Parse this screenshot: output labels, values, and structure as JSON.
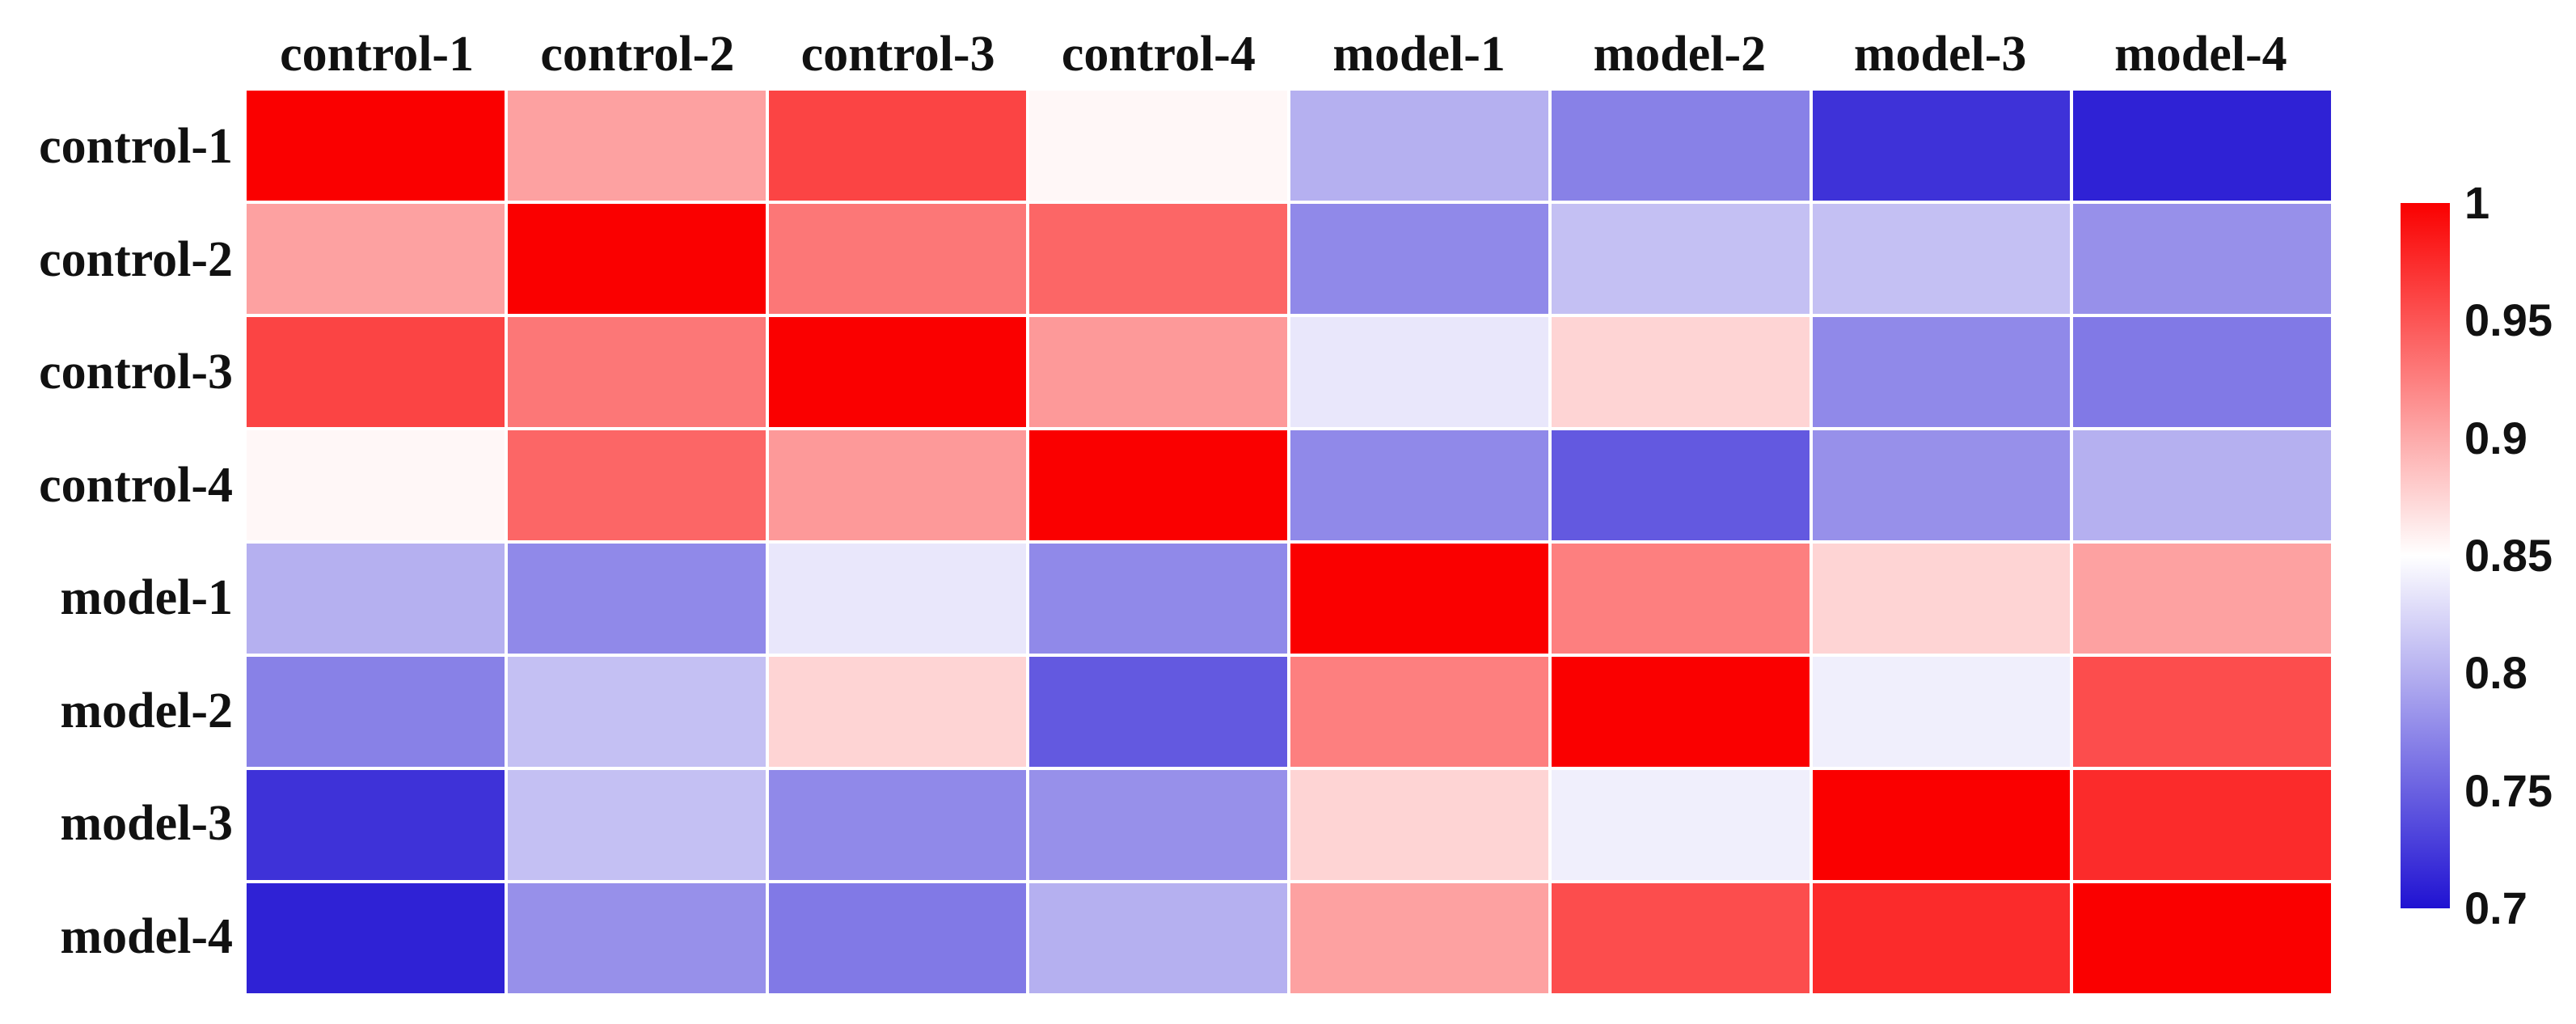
{
  "figure": {
    "background": "#ffffff",
    "text_color": "#111111"
  },
  "chart_data": {
    "type": "heatmap",
    "title": "",
    "xlabel": "",
    "ylabel": "",
    "x_categories": [
      "control-1",
      "control-2",
      "control-3",
      "control-4",
      "model-1",
      "model-2",
      "model-3",
      "model-4"
    ],
    "y_categories": [
      "control-1",
      "control-2",
      "control-3",
      "control-4",
      "model-1",
      "model-2",
      "model-3",
      "model-4"
    ],
    "values": [
      [
        1.0,
        0.905,
        0.96,
        0.855,
        0.8,
        0.77,
        0.72,
        0.71
      ],
      [
        0.905,
        1.0,
        0.93,
        0.94,
        0.775,
        0.81,
        0.81,
        0.78
      ],
      [
        0.96,
        0.93,
        1.0,
        0.91,
        0.835,
        0.875,
        0.775,
        0.765
      ],
      [
        0.855,
        0.94,
        0.91,
        1.0,
        0.775,
        0.745,
        0.78,
        0.8
      ],
      [
        0.8,
        0.775,
        0.835,
        0.775,
        1.0,
        0.925,
        0.875,
        0.905
      ],
      [
        0.77,
        0.81,
        0.875,
        0.745,
        0.925,
        1.0,
        0.84,
        0.955
      ],
      [
        0.72,
        0.81,
        0.775,
        0.78,
        0.875,
        0.84,
        1.0,
        0.975
      ],
      [
        0.71,
        0.78,
        0.765,
        0.8,
        0.905,
        0.955,
        0.975,
        1.0
      ]
    ],
    "grid": false,
    "cell_gap_color": "#ffffff",
    "legend_position": "right",
    "colorbar": {
      "min": 0.7,
      "max": 1.0,
      "midpoint": 0.85,
      "ticks": [
        "1",
        "0.95",
        "0.9",
        "0.85",
        "0.8",
        "0.75",
        "0.7"
      ],
      "tick_values": [
        1,
        0.95,
        0.9,
        0.85,
        0.8,
        0.75,
        0.7
      ],
      "color_max": "#fa0000",
      "color_mid": "#ffffff",
      "color_min": "#2012d2"
    }
  }
}
